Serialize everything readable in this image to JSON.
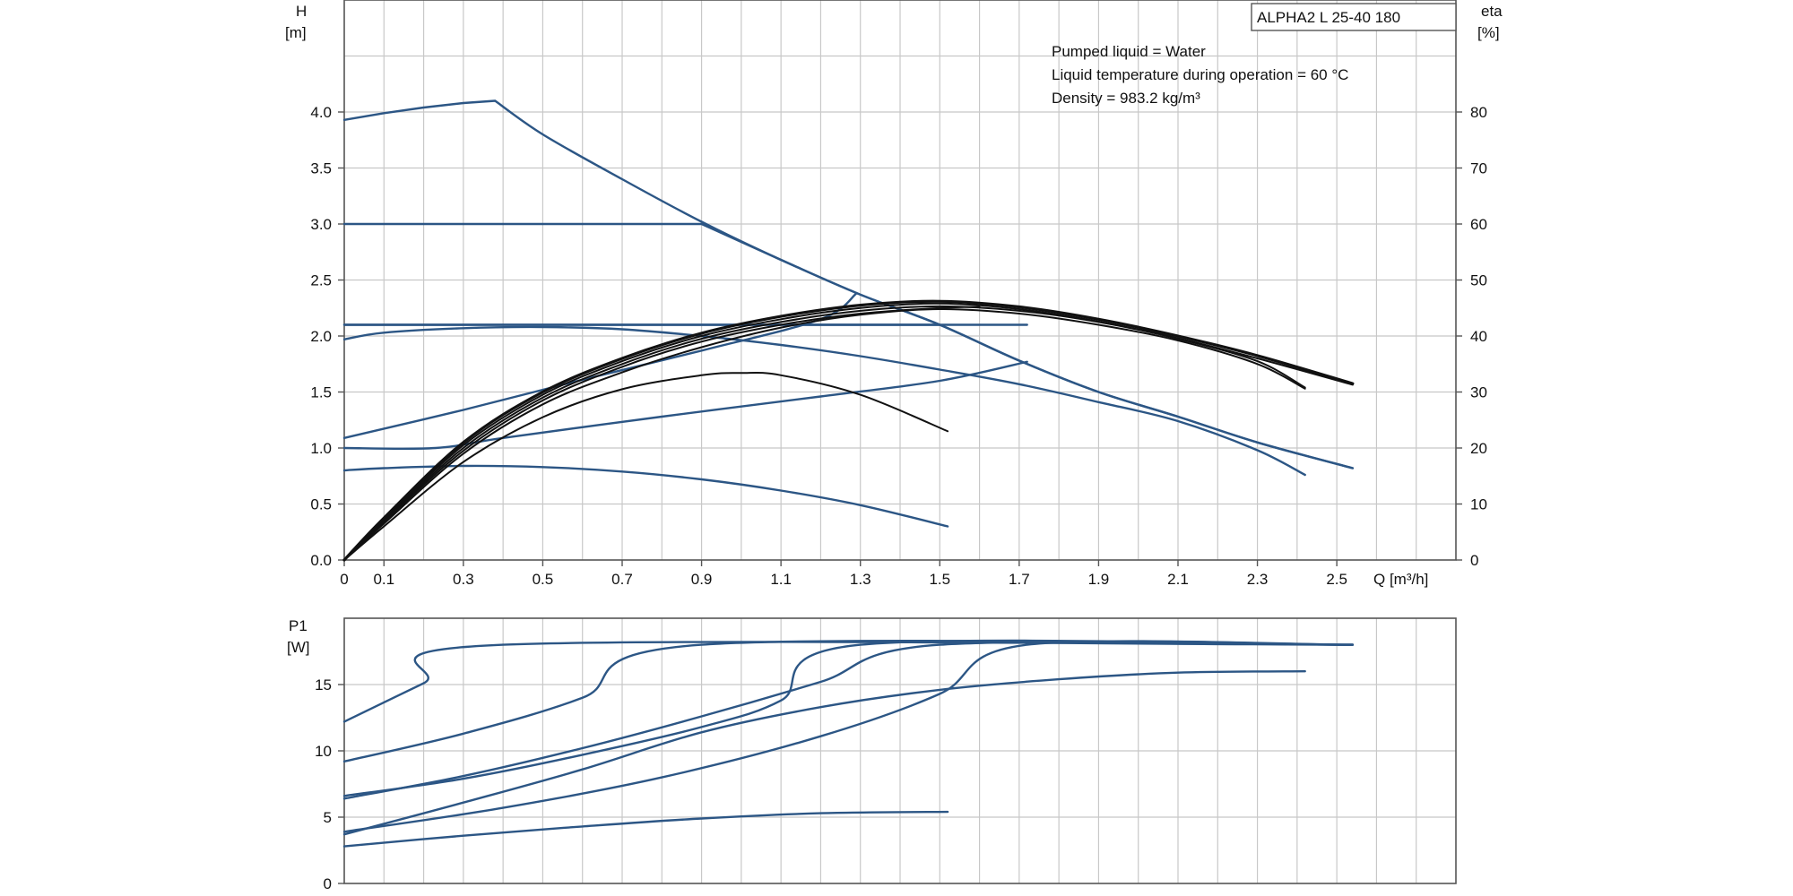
{
  "chart_data": [
    {
      "type": "line",
      "title": "",
      "model_label": "ALPHA2 L 25-40 180",
      "notes": [
        "Pumped liquid = Water",
        "Liquid temperature during operation = 60 °C",
        "Density = 983.2 kg/m³"
      ],
      "xlabel": "Q [m³/h]",
      "ylabel_left": "H",
      "ylabel_left_unit": "[m]",
      "ylabel_right": "eta",
      "ylabel_right_unit": "[%]",
      "xlim": [
        0,
        2.8
      ],
      "ylim": [
        0,
        5.0
      ],
      "y2lim": [
        0,
        100
      ],
      "x_ticks": [
        "0",
        "0.1",
        "0.3",
        "0.5",
        "0.7",
        "0.9",
        "1.1",
        "1.3",
        "1.5",
        "1.7",
        "1.9",
        "2.1",
        "2.3",
        "2.5"
      ],
      "y_ticks": [
        "0.0",
        "0.5",
        "1.0",
        "1.5",
        "2.0",
        "2.5",
        "3.0",
        "3.5",
        "4.0"
      ],
      "y2_ticks": [
        "0",
        "10",
        "20",
        "30",
        "40",
        "50",
        "60",
        "70",
        "80"
      ],
      "grid": true,
      "colors": {
        "head": "#2c5685",
        "efficiency": "#111111",
        "grid": "#c8c8c8"
      },
      "head_series": [
        {
          "points": [
            [
              0,
              3.93
            ],
            [
              0.1,
              3.99
            ],
            [
              0.2,
              4.04
            ],
            [
              0.3,
              4.08
            ],
            [
              0.38,
              4.1
            ],
            [
              0.5,
              3.8
            ],
            [
              0.7,
              3.4
            ],
            [
              0.9,
              3.02
            ],
            [
              1.1,
              2.68
            ],
            [
              1.3,
              2.37
            ],
            [
              1.5,
              2.1
            ],
            [
              1.7,
              1.78
            ],
            [
              1.9,
              1.5
            ],
            [
              2.1,
              1.28
            ],
            [
              2.3,
              1.05
            ],
            [
              2.54,
              0.82
            ]
          ]
        },
        {
          "points": [
            [
              0,
              3.0
            ],
            [
              0.9,
              3.0
            ],
            [
              1.1,
              2.68
            ],
            [
              1.3,
              2.37
            ],
            [
              1.5,
              2.1
            ],
            [
              1.7,
              1.78
            ],
            [
              1.9,
              1.5
            ],
            [
              2.1,
              1.28
            ],
            [
              2.3,
              1.05
            ],
            [
              2.54,
              0.82
            ]
          ]
        },
        {
          "points": [
            [
              0,
              2.1
            ],
            [
              1.5,
              2.1
            ]
          ]
        },
        {
          "points": [
            [
              0,
              2.1
            ],
            [
              1.72,
              2.1
            ]
          ]
        },
        {
          "points": [
            [
              0,
              1.97
            ],
            [
              0.1,
              2.03
            ],
            [
              0.3,
              2.07
            ],
            [
              0.5,
              2.08
            ],
            [
              0.7,
              2.06
            ],
            [
              0.9,
              2.0
            ],
            [
              1.1,
              1.92
            ],
            [
              1.3,
              1.82
            ],
            [
              1.5,
              1.7
            ],
            [
              1.7,
              1.57
            ],
            [
              1.9,
              1.41
            ],
            [
              2.1,
              1.24
            ],
            [
              2.3,
              0.98
            ],
            [
              2.42,
              0.76
            ]
          ]
        },
        {
          "points": [
            [
              0,
              1.09
            ],
            [
              0.3,
              1.34
            ],
            [
              0.6,
              1.61
            ],
            [
              0.9,
              1.87
            ],
            [
              1.2,
              2.15
            ],
            [
              1.29,
              2.38
            ]
          ]
        },
        {
          "points": [
            [
              0,
              1.0
            ],
            [
              0.23,
              1.0
            ],
            [
              0.4,
              1.09
            ],
            [
              0.8,
              1.28
            ],
            [
              1.2,
              1.46
            ],
            [
              1.5,
              1.6
            ],
            [
              1.72,
              1.77
            ]
          ]
        },
        {
          "points": [
            [
              0,
              0.8
            ],
            [
              0.1,
              0.82
            ],
            [
              0.3,
              0.84
            ],
            [
              0.5,
              0.83
            ],
            [
              0.7,
              0.79
            ],
            [
              0.9,
              0.72
            ],
            [
              1.1,
              0.62
            ],
            [
              1.3,
              0.49
            ],
            [
              1.52,
              0.3
            ]
          ]
        }
      ],
      "efficiency_series": [
        {
          "points": [
            [
              0,
              0
            ],
            [
              0.1,
              7.5
            ],
            [
              0.3,
              21
            ],
            [
              0.5,
              30
            ],
            [
              0.7,
              36
            ],
            [
              0.9,
              40.5
            ],
            [
              1.1,
              43.5
            ],
            [
              1.3,
              45.5
            ],
            [
              1.5,
              46.2
            ],
            [
              1.7,
              45.2
            ],
            [
              1.9,
              43
            ],
            [
              2.1,
              40
            ],
            [
              2.3,
              36.5
            ],
            [
              2.54,
              31.5
            ]
          ]
        },
        {
          "points": [
            [
              0,
              0
            ],
            [
              0.1,
              7.2
            ],
            [
              0.3,
              20.5
            ],
            [
              0.5,
              29.5
            ],
            [
              0.7,
              35.5
            ],
            [
              0.9,
              40
            ],
            [
              1.1,
              43
            ],
            [
              1.3,
              45
            ],
            [
              1.5,
              45.8
            ],
            [
              1.7,
              44.8
            ],
            [
              1.9,
              42.6
            ],
            [
              2.1,
              39.6
            ],
            [
              2.3,
              36
            ],
            [
              2.54,
              31.3
            ]
          ]
        },
        {
          "points": [
            [
              0,
              0
            ],
            [
              0.1,
              7
            ],
            [
              0.3,
              20
            ],
            [
              0.5,
              29
            ],
            [
              0.7,
              35
            ],
            [
              0.9,
              39.5
            ],
            [
              1.1,
              42.5
            ],
            [
              1.3,
              44.5
            ],
            [
              1.5,
              45.3
            ],
            [
              1.7,
              44.5
            ],
            [
              1.9,
              42.5
            ],
            [
              2.1,
              39.5
            ],
            [
              2.3,
              35.5
            ],
            [
              2.42,
              30.8
            ]
          ]
        },
        {
          "points": [
            [
              0,
              0
            ],
            [
              0.1,
              6.8
            ],
            [
              0.3,
              19.5
            ],
            [
              0.5,
              28.5
            ],
            [
              0.7,
              34.5
            ],
            [
              0.9,
              39
            ],
            [
              1.1,
              42
            ],
            [
              1.3,
              44
            ],
            [
              1.5,
              45
            ],
            [
              1.6,
              45.2
            ]
          ]
        },
        {
          "points": [
            [
              0,
              0
            ],
            [
              0.1,
              6.5
            ],
            [
              0.3,
              19
            ],
            [
              0.5,
              27.8
            ],
            [
              0.7,
              33.5
            ],
            [
              0.9,
              38
            ],
            [
              1.1,
              41.5
            ],
            [
              1.3,
              43.8
            ],
            [
              1.5,
              44.8
            ],
            [
              1.7,
              44
            ],
            [
              1.9,
              42
            ],
            [
              2.1,
              39.2
            ],
            [
              2.3,
              35
            ],
            [
              2.42,
              30.6
            ]
          ]
        },
        {
          "points": [
            [
              0,
              0
            ],
            [
              0.1,
              6
            ],
            [
              0.3,
              17.5
            ],
            [
              0.5,
              25.5
            ],
            [
              0.7,
              30.5
            ],
            [
              0.9,
              33
            ],
            [
              1.0,
              33.4
            ],
            [
              1.1,
              33
            ],
            [
              1.3,
              29.5
            ],
            [
              1.52,
              23
            ]
          ]
        }
      ]
    },
    {
      "type": "line",
      "title": "",
      "ylabel": "P1",
      "ylabel_unit": "[W]",
      "xlim": [
        0,
        2.8
      ],
      "ylim": [
        0,
        20
      ],
      "y_ticks": [
        "0",
        "5",
        "10",
        "15"
      ],
      "grid": true,
      "colors": {
        "power": "#2c5685"
      },
      "power_series": [
        {
          "points": [
            [
              0,
              12.2
            ],
            [
              0.2,
              15.1
            ],
            [
              0.4,
              18.0
            ],
            [
              2.54,
              18.0
            ]
          ]
        },
        {
          "points": [
            [
              0,
              9.2
            ],
            [
              0.3,
              11.3
            ],
            [
              0.6,
              14.0
            ],
            [
              0.9,
              18.0
            ],
            [
              2.54,
              18.0
            ]
          ]
        },
        {
          "points": [
            [
              0,
              6.6
            ],
            [
              0.3,
              7.9
            ],
            [
              0.6,
              9.7
            ],
            [
              0.9,
              11.8
            ],
            [
              1.1,
              13.8
            ],
            [
              1.3,
              18.0
            ],
            [
              2.54,
              18.0
            ]
          ]
        },
        {
          "points": [
            [
              0,
              6.4
            ],
            [
              0.3,
              8.1
            ],
            [
              0.6,
              10.2
            ],
            [
              0.9,
              12.6
            ],
            [
              1.2,
              15.2
            ],
            [
              1.5,
              18.0
            ],
            [
              2.54,
              18.0
            ]
          ]
        },
        {
          "points": [
            [
              0,
              3.9
            ],
            [
              0.4,
              5.7
            ],
            [
              0.8,
              8.0
            ],
            [
              1.2,
              11.1
            ],
            [
              1.5,
              14.3
            ],
            [
              1.72,
              18.0
            ],
            [
              2.54,
              18.0
            ]
          ]
        },
        {
          "points": [
            [
              0,
              3.7
            ],
            [
              0.3,
              6.1
            ],
            [
              0.6,
              8.6
            ],
            [
              0.9,
              11.4
            ],
            [
              1.2,
              13.3
            ],
            [
              1.5,
              14.6
            ],
            [
              1.8,
              15.4
            ],
            [
              2.1,
              15.9
            ],
            [
              2.42,
              16.0
            ]
          ]
        },
        {
          "points": [
            [
              0,
              2.8
            ],
            [
              0.3,
              3.6
            ],
            [
              0.6,
              4.3
            ],
            [
              0.9,
              4.9
            ],
            [
              1.2,
              5.3
            ],
            [
              1.52,
              5.4
            ]
          ]
        }
      ]
    }
  ]
}
